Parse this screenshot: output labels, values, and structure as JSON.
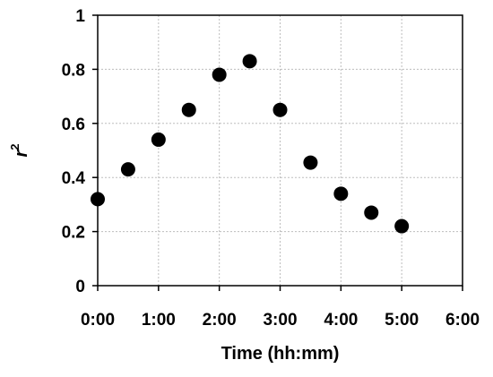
{
  "chart_data": {
    "type": "scatter",
    "title": "",
    "xlabel": "Time (hh:mm)",
    "ylabel": "r",
    "ylabel_superscript": "2",
    "x_ticks": [
      "0:00",
      "1:00",
      "2:00",
      "3:00",
      "4:00",
      "5:00",
      "6:00"
    ],
    "y_ticks": [
      "0",
      "0.2",
      "0.4",
      "0.6",
      "0.8",
      "1"
    ],
    "xlim": [
      "0:00",
      "6:00"
    ],
    "ylim": [
      0,
      1
    ],
    "grid": true,
    "marker_color": "#000000",
    "series": [
      {
        "x": [
          "0:00",
          "0:30",
          "1:00",
          "1:30",
          "2:00",
          "2:30",
          "3:00",
          "3:30",
          "4:00",
          "4:30",
          "5:00"
        ],
        "y": [
          0.32,
          0.43,
          0.54,
          0.65,
          0.78,
          0.83,
          0.65,
          0.455,
          0.34,
          0.27,
          0.22
        ]
      }
    ]
  }
}
